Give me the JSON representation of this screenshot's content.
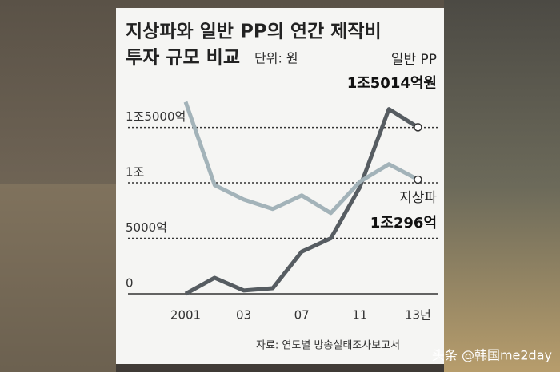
{
  "chart_data": {
    "type": "line",
    "title": [
      "지상파와 일반 PP의 연간 제작비",
      "투자 규모 비교"
    ],
    "unit": "단위: 원",
    "categories": [
      "2001",
      null,
      "03",
      null,
      "07",
      null,
      "11",
      null,
      "13년"
    ],
    "series": [
      {
        "name": "일반 PP",
        "color": "#565c61",
        "values": [
          0,
          1440,
          300,
          500,
          3800,
          5000,
          9600,
          16650,
          15014
        ],
        "value_labels": [
          null,
          null,
          null,
          null,
          null,
          null,
          null,
          null,
          "1조5014억원"
        ]
      },
      {
        "name": "지상파",
        "color": "#a3b3b9",
        "values": [
          17300,
          9800,
          8500,
          7650,
          8870,
          7280,
          10100,
          11680,
          10296
        ],
        "value_labels": [
          null,
          null,
          null,
          null,
          null,
          null,
          null,
          null,
          "1조296억"
        ]
      }
    ],
    "ylim": [
      0,
      19000
    ],
    "yticks": [
      0,
      {
        "value": 5000,
        "label": "5000억"
      },
      {
        "value": 10000,
        "label": "1조"
      },
      {
        "value": 15000,
        "label": "1조5000억"
      }
    ],
    "grid": true,
    "source": "자료: 연도별 방송실태조사보고서",
    "watermark": "头条 @韩国me2day"
  }
}
